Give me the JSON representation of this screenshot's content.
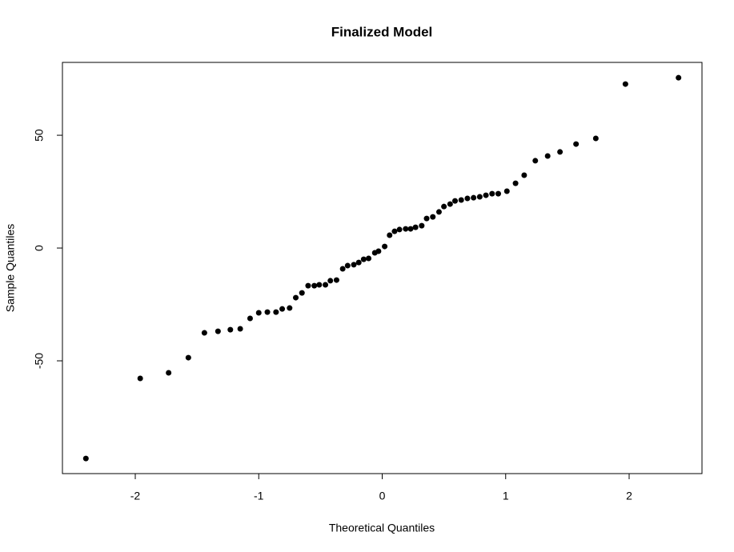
{
  "chart_data": {
    "type": "scatter",
    "title": "Finalized Model",
    "x_label": "Theoretical Quantiles",
    "y_label": "Sample Quantiles",
    "color": "#000000",
    "xlim": [
      -2.59,
      2.59
    ],
    "ylim": [
      -100,
      82.3
    ],
    "xticks": [
      -2,
      -1,
      0,
      1,
      2
    ],
    "yticks": [
      -50,
      0,
      50
    ],
    "x": [
      -2.4,
      -1.96,
      -1.73,
      -1.57,
      -1.44,
      -1.33,
      -1.23,
      -1.15,
      -1.07,
      -1.0,
      -0.93,
      -0.86,
      -0.81,
      -0.75,
      -0.7,
      -0.65,
      -0.6,
      -0.55,
      -0.51,
      -0.46,
      -0.42,
      -0.37,
      -0.32,
      -0.28,
      -0.23,
      -0.19,
      -0.15,
      -0.11,
      -0.06,
      -0.03,
      0.02,
      0.06,
      0.1,
      0.14,
      0.19,
      0.23,
      0.27,
      0.32,
      0.36,
      0.41,
      0.46,
      0.5,
      0.55,
      0.59,
      0.64,
      0.69,
      0.74,
      0.79,
      0.84,
      0.89,
      0.94,
      1.01,
      1.08,
      1.15,
      1.24,
      1.34,
      1.44,
      1.57,
      1.73,
      1.97,
      2.4
    ],
    "values": [
      -93.3,
      -57.8,
      -55.3,
      -48.6,
      -37.6,
      -36.9,
      -36.2,
      -35.8,
      -31.2,
      -28.7,
      -28.4,
      -28.4,
      -27.0,
      -26.6,
      -22.0,
      -19.9,
      -16.7,
      -16.7,
      -16.3,
      -16.3,
      -14.5,
      -14.2,
      -9.2,
      -7.8,
      -7.4,
      -6.4,
      -5.0,
      -4.6,
      -2.1,
      -1.4,
      0.7,
      5.7,
      7.4,
      8.2,
      8.5,
      8.5,
      9.2,
      9.9,
      13.1,
      13.8,
      16.0,
      18.4,
      19.5,
      20.9,
      21.3,
      22.0,
      22.3,
      22.7,
      23.4,
      24.1,
      24.1,
      25.2,
      28.7,
      32.3,
      38.7,
      40.8,
      42.6,
      46.1,
      48.6,
      72.7,
      75.5
    ]
  }
}
